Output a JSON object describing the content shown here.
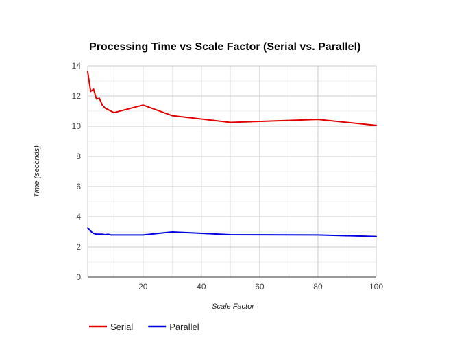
{
  "chart_data": {
    "type": "line",
    "title": "Processing Time vs Scale Factor (Serial vs. Parallel)",
    "xlabel": "Scale Factor",
    "ylabel": "Time (seconds)",
    "xlim": [
      1,
      100
    ],
    "ylim": [
      0,
      14
    ],
    "xticks": [
      20,
      40,
      60,
      80,
      100
    ],
    "yticks": [
      0,
      2,
      4,
      6,
      8,
      10,
      12,
      14
    ],
    "grid": true,
    "legend_position": "bottom-left",
    "series": [
      {
        "name": "Serial",
        "color": "#e00000",
        "x": [
          1,
          2,
          3,
          4,
          5,
          6,
          7,
          8,
          9,
          10,
          20,
          30,
          50,
          80,
          100
        ],
        "y": [
          13.6,
          12.3,
          12.45,
          11.8,
          11.85,
          11.4,
          11.2,
          11.1,
          11.0,
          10.9,
          11.4,
          10.7,
          10.25,
          10.45,
          10.05
        ]
      },
      {
        "name": "Parallel",
        "color": "#0000e0",
        "x": [
          1,
          2,
          3,
          4,
          5,
          6,
          7,
          8,
          9,
          10,
          20,
          30,
          50,
          80,
          100
        ],
        "y": [
          3.25,
          3.05,
          2.9,
          2.85,
          2.85,
          2.85,
          2.82,
          2.85,
          2.8,
          2.8,
          2.8,
          3.0,
          2.82,
          2.8,
          2.7
        ]
      }
    ]
  }
}
